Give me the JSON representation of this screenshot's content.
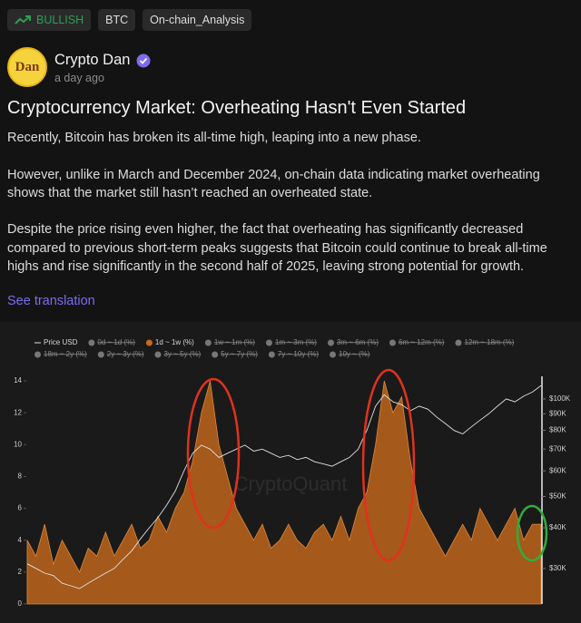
{
  "tags": [
    "BULLISH",
    "BTC",
    "On-chain_Analysis"
  ],
  "author": {
    "avatar_text": "Dan",
    "name": "Crypto Dan",
    "time": "a day ago"
  },
  "post": {
    "title": "Cryptocurrency Market: Overheating Hasn't Even Started",
    "paragraphs": [
      "Recently, Bitcoin has broken its all-time high, leaping into a new phase.",
      "However, unlike in March and December 2024, on-chain data indicating market overheating shows that the market still hasn’t reached an overheated state.",
      "Despite the price rising even higher, the fact that overheating has significantly decreased compared to previous short-term peaks suggests that Bitcoin could continue to break all-time highs and rise significantly in the second half of 2025, leaving strong potential for growth."
    ],
    "link": "See translation"
  },
  "chart_data": {
    "type": "area",
    "watermark": "CryptoQuant",
    "legend": [
      {
        "name": "Price USD",
        "hidden": false
      },
      {
        "name": "0d ~ 1d (%)",
        "hidden": true
      },
      {
        "name": "1d ~ 1w (%)",
        "hidden": false
      },
      {
        "name": "1w ~ 1m (%)",
        "hidden": true
      },
      {
        "name": "1m ~ 3m (%)",
        "hidden": true
      },
      {
        "name": "3m ~ 6m (%)",
        "hidden": true
      },
      {
        "name": "6m ~ 12m (%)",
        "hidden": true
      },
      {
        "name": "12m ~ 18m (%)",
        "hidden": true
      },
      {
        "name": "18m ~ 2y (%)",
        "hidden": true
      },
      {
        "name": "2y ~ 3y (%)",
        "hidden": true
      },
      {
        "name": "3y ~ 5y (%)",
        "hidden": true
      },
      {
        "name": "5y ~ 7y (%)",
        "hidden": true
      },
      {
        "name": "7y ~ 10y (%)",
        "hidden": true
      },
      {
        "name": "10y ~ (%)",
        "hidden": true
      }
    ],
    "ylim": [
      0,
      14
    ],
    "yticks": [
      0,
      2,
      4,
      6,
      8,
      10,
      12,
      14
    ],
    "y2lim": [
      23300,
      113700
    ],
    "y2log": true,
    "y2ticks": [
      {
        "value": 30000,
        "label": "$30K"
      },
      {
        "value": 40000,
        "label": "$40K"
      },
      {
        "value": 50000,
        "label": "$50K"
      },
      {
        "value": 60000,
        "label": "$60K"
      },
      {
        "value": 70000,
        "label": "$70K"
      },
      {
        "value": 80000,
        "label": "$80K"
      },
      {
        "value": 90000,
        "label": "$90K"
      },
      {
        "value": 100000,
        "label": "$100K"
      }
    ],
    "series": [
      {
        "name": "1d ~ 1w (%)",
        "color": "#c8691c",
        "values": [
          4,
          3,
          5,
          2.5,
          4,
          3,
          2,
          3.5,
          3,
          4.5,
          3,
          4,
          5,
          3.5,
          4,
          5.5,
          4.5,
          6,
          7,
          9,
          12,
          14,
          10,
          8,
          6,
          5,
          4,
          5,
          3.5,
          4,
          5,
          4,
          3.5,
          4.5,
          5,
          4,
          5.5,
          4,
          6,
          7,
          10,
          14,
          12,
          13,
          9,
          6,
          5,
          4,
          3,
          4,
          5,
          4,
          6,
          5,
          4,
          5,
          6,
          4,
          5,
          5
        ]
      },
      {
        "name": "Price USD",
        "color": "#e0e0e0",
        "axis": "y2",
        "values": [
          31000,
          30000,
          29000,
          28500,
          27000,
          26500,
          26000,
          27000,
          28000,
          29000,
          30000,
          32000,
          34000,
          37000,
          40000,
          43000,
          47000,
          52000,
          60000,
          68000,
          72000,
          70000,
          66000,
          68000,
          70000,
          72000,
          69000,
          70000,
          68000,
          66000,
          67000,
          65000,
          66000,
          64000,
          63000,
          62000,
          64000,
          66000,
          70000,
          80000,
          95000,
          103000,
          98000,
          96000,
          92000,
          95000,
          93000,
          88000,
          84000,
          80000,
          78000,
          82000,
          86000,
          90000,
          95000,
          100000,
          98000,
          102000,
          105000,
          110000
        ]
      }
    ]
  }
}
